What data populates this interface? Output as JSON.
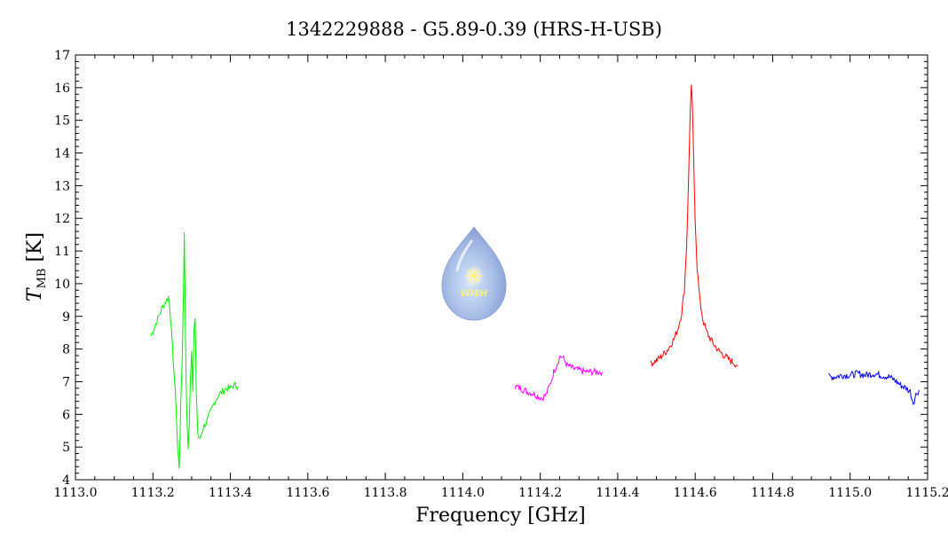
{
  "chart_data": {
    "type": "line",
    "title": "1342229888 - G5.89-0.39 (HRS-H-USB)",
    "xlabel": "Frequency [GHz]",
    "ylabel": {
      "main": "T",
      "sub": "MB",
      "unit": " [K]"
    },
    "xlim": [
      1113.0,
      1115.2
    ],
    "ylim": [
      4,
      17
    ],
    "xticks_major": [
      1113.0,
      1113.2,
      1113.4,
      1113.6,
      1113.8,
      1114.0,
      1114.2,
      1114.4,
      1114.6,
      1114.8,
      1115.0,
      1115.2
    ],
    "xtick_labels": [
      "1113.0",
      "1113.2",
      "1113.4",
      "1113.6",
      "1113.8",
      "1114.0",
      "1114.2",
      "1114.4",
      "1114.6",
      "1114.8",
      "1115.0",
      "1115.2"
    ],
    "yticks_major": [
      4,
      5,
      6,
      7,
      8,
      9,
      10,
      11,
      12,
      13,
      14,
      15,
      16,
      17
    ],
    "ytick_labels": [
      "4",
      "5",
      "6",
      "7",
      "8",
      "9",
      "10",
      "11",
      "12",
      "13",
      "14",
      "15",
      "16",
      "17"
    ],
    "grid": false,
    "logo_text": "WISH",
    "series": [
      {
        "color": "#00ee00",
        "x": [
          1113.195,
          1113.205,
          1113.215,
          1113.225,
          1113.235,
          1113.24,
          1113.243,
          1113.248,
          1113.255,
          1113.26,
          1113.264,
          1113.268,
          1113.272,
          1113.276,
          1113.279,
          1113.281,
          1113.283,
          1113.285,
          1113.288,
          1113.291,
          1113.294,
          1113.297,
          1113.3,
          1113.303,
          1113.306,
          1113.309,
          1113.312,
          1113.316,
          1113.32,
          1113.325,
          1113.33,
          1113.34,
          1113.35,
          1113.36,
          1113.37,
          1113.38,
          1113.39,
          1113.4,
          1113.41,
          1113.42
        ],
        "y": [
          8.4,
          8.7,
          9.0,
          9.3,
          9.5,
          9.6,
          9.4,
          8.5,
          7.2,
          6.2,
          4.9,
          4.4,
          6.3,
          7.9,
          9.8,
          11.5,
          9.8,
          7.5,
          5.8,
          5.0,
          5.7,
          7.1,
          8.0,
          6.8,
          8.6,
          8.9,
          6.7,
          5.4,
          5.2,
          5.4,
          5.6,
          5.8,
          6.1,
          6.4,
          6.6,
          6.7,
          6.8,
          6.8,
          6.9,
          6.85
        ]
      },
      {
        "color": "#ff00ff",
        "x": [
          1114.135,
          1114.15,
          1114.165,
          1114.18,
          1114.195,
          1114.205,
          1114.215,
          1114.225,
          1114.235,
          1114.245,
          1114.252,
          1114.26,
          1114.27,
          1114.285,
          1114.3,
          1114.32,
          1114.34,
          1114.36
        ],
        "y": [
          6.85,
          6.8,
          6.7,
          6.65,
          6.55,
          6.5,
          6.6,
          6.9,
          7.3,
          7.6,
          7.8,
          7.7,
          7.5,
          7.4,
          7.35,
          7.3,
          7.3,
          7.3
        ]
      },
      {
        "color": "#ff0000",
        "x": [
          1114.485,
          1114.5,
          1114.515,
          1114.53,
          1114.545,
          1114.555,
          1114.565,
          1114.572,
          1114.578,
          1114.583,
          1114.587,
          1114.59,
          1114.593,
          1114.596,
          1114.6,
          1114.605,
          1114.612,
          1114.62,
          1114.63,
          1114.645,
          1114.66,
          1114.675,
          1114.69,
          1114.71
        ],
        "y": [
          7.55,
          7.65,
          7.8,
          8.0,
          8.3,
          8.6,
          9.1,
          9.8,
          11.2,
          13.2,
          15.2,
          16.0,
          15.4,
          13.8,
          12.0,
          10.5,
          9.5,
          8.9,
          8.5,
          8.2,
          7.95,
          7.8,
          7.65,
          7.5
        ]
      },
      {
        "color": "#0000ee",
        "x": [
          1114.945,
          1114.96,
          1114.98,
          1115.0,
          1115.02,
          1115.04,
          1115.06,
          1115.08,
          1115.1,
          1115.115,
          1115.13,
          1115.145,
          1115.155,
          1115.163,
          1115.17,
          1115.178
        ],
        "y": [
          7.15,
          7.15,
          7.2,
          7.2,
          7.25,
          7.2,
          7.25,
          7.2,
          7.15,
          7.05,
          6.9,
          6.8,
          6.7,
          6.35,
          6.6,
          6.75
        ]
      }
    ]
  }
}
